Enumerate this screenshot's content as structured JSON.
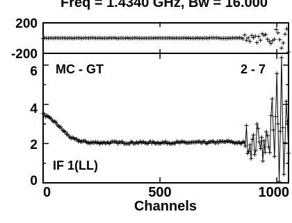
{
  "chart_data": [
    {
      "type": "scatter",
      "title": "Freq = 1.4340 GHz, Bw = 16.000",
      "xlim": [
        0,
        1050
      ],
      "ylim": [
        -200,
        200
      ],
      "y_tick_labels": [
        "200",
        "-200"
      ],
      "grid": false,
      "marker": "plus",
      "x": [
        0,
        100,
        200,
        300,
        400,
        500,
        600,
        700,
        800,
        880,
        920,
        950,
        980,
        1000,
        1020,
        1040,
        1050
      ],
      "y": [
        0,
        0,
        0,
        0,
        0,
        0,
        0,
        0,
        0,
        5,
        -20,
        40,
        -60,
        110,
        -130,
        160,
        -150
      ]
    },
    {
      "type": "scatter",
      "xlabel": "Channels",
      "x_tick_labels": [
        "0",
        "500",
        "1000"
      ],
      "xlim": [
        0,
        1050
      ],
      "y_tick_labels": [
        "0",
        "2",
        "4",
        "6"
      ],
      "ylim": [
        0,
        6.6
      ],
      "grid": false,
      "marker": "plus",
      "annotations": [
        "MC - GT",
        "2 - 7",
        "IF 1(LL)"
      ],
      "x": [
        0,
        25,
        50,
        75,
        100,
        125,
        150,
        175,
        200,
        300,
        400,
        500,
        600,
        700,
        800,
        850,
        875,
        900,
        925,
        950,
        960,
        970,
        980,
        990,
        1000,
        1010,
        1020,
        1030,
        1040,
        1050
      ],
      "y": [
        3.5,
        3.3,
        3.1,
        2.8,
        2.5,
        2.25,
        2.15,
        2.1,
        2.05,
        2.05,
        2.05,
        2.05,
        2.05,
        2.05,
        2.1,
        2.0,
        2.3,
        1.8,
        2.6,
        1.4,
        3.0,
        1.2,
        4.2,
        0.9,
        5.2,
        0.5,
        6.2,
        0.3,
        4.6,
        1.3
      ]
    }
  ]
}
